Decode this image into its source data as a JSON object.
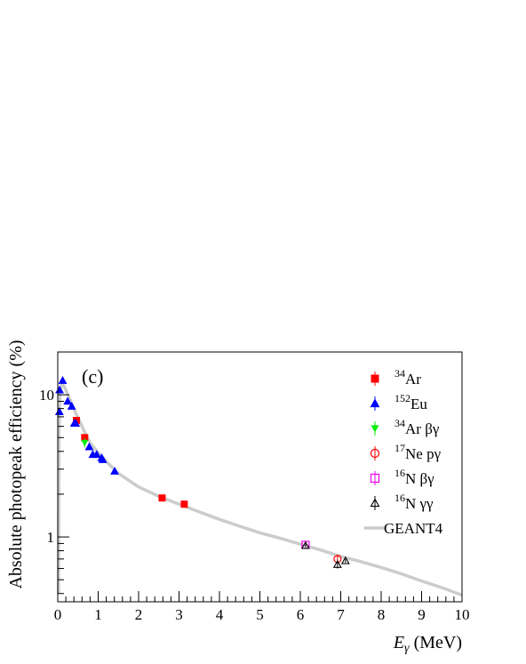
{
  "chart_data": {
    "type": "scatter",
    "panel_label": "(c)",
    "xlabel": {
      "symbol": "E",
      "subscript": "γ",
      "unit": " (MeV)"
    },
    "ylabel": "Absolute photopeak efficiency (%)",
    "xlim": [
      0,
      10
    ],
    "ylim": [
      0.35,
      20
    ],
    "yscale": "log",
    "grid": false,
    "legend_position": "top-right",
    "x_ticks": [
      {
        "value": 0,
        "label": "0"
      },
      {
        "value": 1,
        "label": "1"
      },
      {
        "value": 2,
        "label": "2"
      },
      {
        "value": 3,
        "label": "3"
      },
      {
        "value": 4,
        "label": "4"
      },
      {
        "value": 5,
        "label": "5"
      },
      {
        "value": 6,
        "label": "6"
      },
      {
        "value": 7,
        "label": "7"
      },
      {
        "value": 8,
        "label": "8"
      },
      {
        "value": 9,
        "label": "9"
      },
      {
        "value": 10,
        "label": "10"
      }
    ],
    "y_ticks": [
      {
        "value": 1,
        "label": "1"
      },
      {
        "value": 10,
        "label": "10"
      }
    ],
    "series": [
      {
        "name_sup": "34",
        "name_main": "Ar",
        "marker": "square-filled",
        "color": "#ff0000",
        "points": [
          [
            0.461,
            6.6
          ],
          [
            0.666,
            5.0
          ],
          [
            2.581,
            1.88
          ],
          [
            3.129,
            1.7
          ]
        ],
        "errors": [
          0.35,
          0.2,
          0.05,
          0.05
        ]
      },
      {
        "name_sup": "152",
        "name_main": "Eu",
        "marker": "triangle-up-filled",
        "color": "#0000ff",
        "points": [
          [
            0.0405,
            7.6
          ],
          [
            0.0454,
            10.8
          ],
          [
            0.1218,
            12.6
          ],
          [
            0.2447,
            9.0
          ],
          [
            0.3443,
            8.3
          ],
          [
            0.411,
            6.3
          ],
          [
            0.444,
            6.3
          ],
          [
            0.7789,
            4.3
          ],
          [
            0.8674,
            3.8
          ],
          [
            0.9641,
            3.8
          ],
          [
            1.0858,
            3.6
          ],
          [
            1.1121,
            3.5
          ],
          [
            1.4081,
            2.9
          ]
        ],
        "errors": [
          0.4,
          0.4,
          0.4,
          0.3,
          0.3,
          0.2,
          0.2,
          0.15,
          0.1,
          0.1,
          0.1,
          0.1,
          0.08
        ]
      },
      {
        "name_sup": "34",
        "name_main": "Ar βγ",
        "marker": "triangle-down-filled",
        "color": "#00ee00",
        "points": [
          [
            0.666,
            4.6
          ]
        ],
        "errors": [
          0.35
        ]
      },
      {
        "name_sup": "17",
        "name_main": "Ne pγ",
        "marker": "circle-open",
        "color": "#ff0000",
        "points": [
          [
            6.92,
            0.7
          ]
        ],
        "errors": [
          0.05
        ]
      },
      {
        "name_sup": "16",
        "name_main": "N βγ",
        "marker": "square-open",
        "color": "#ee00ee",
        "points": [
          [
            6.129,
            0.88
          ]
        ],
        "errors": [
          0.03
        ]
      },
      {
        "name_sup": "16",
        "name_main": "N γγ",
        "marker": "triangle-up-open",
        "color": "#000000",
        "points": [
          [
            6.129,
            0.87
          ],
          [
            6.92,
            0.64
          ],
          [
            7.117,
            0.68
          ]
        ],
        "errors": [
          0.02,
          0.04,
          0.02
        ]
      }
    ],
    "curve": {
      "name": "GEANT4",
      "color": "#cccccc",
      "points": [
        [
          0.02,
          0.4
        ],
        [
          0.03,
          5.5
        ],
        [
          0.06,
          11.0
        ],
        [
          0.12,
          12.0
        ],
        [
          0.2,
          10.8
        ],
        [
          0.3,
          9.3
        ],
        [
          0.4,
          7.9
        ],
        [
          0.5,
          6.9
        ],
        [
          0.6,
          6.0
        ],
        [
          0.7,
          5.2
        ],
        [
          0.8,
          4.6
        ],
        [
          1.0,
          3.9
        ],
        [
          1.2,
          3.4
        ],
        [
          1.5,
          2.8
        ],
        [
          2.0,
          2.25
        ],
        [
          2.5,
          1.93
        ],
        [
          3.0,
          1.7
        ],
        [
          3.5,
          1.5
        ],
        [
          4.0,
          1.33
        ],
        [
          4.5,
          1.19
        ],
        [
          5.0,
          1.07
        ],
        [
          5.5,
          0.98
        ],
        [
          6.0,
          0.89
        ],
        [
          6.5,
          0.81
        ],
        [
          7.0,
          0.73
        ],
        [
          7.5,
          0.67
        ],
        [
          8.0,
          0.61
        ],
        [
          8.5,
          0.55
        ],
        [
          9.0,
          0.49
        ],
        [
          9.5,
          0.44
        ],
        [
          10.0,
          0.39
        ]
      ]
    }
  }
}
